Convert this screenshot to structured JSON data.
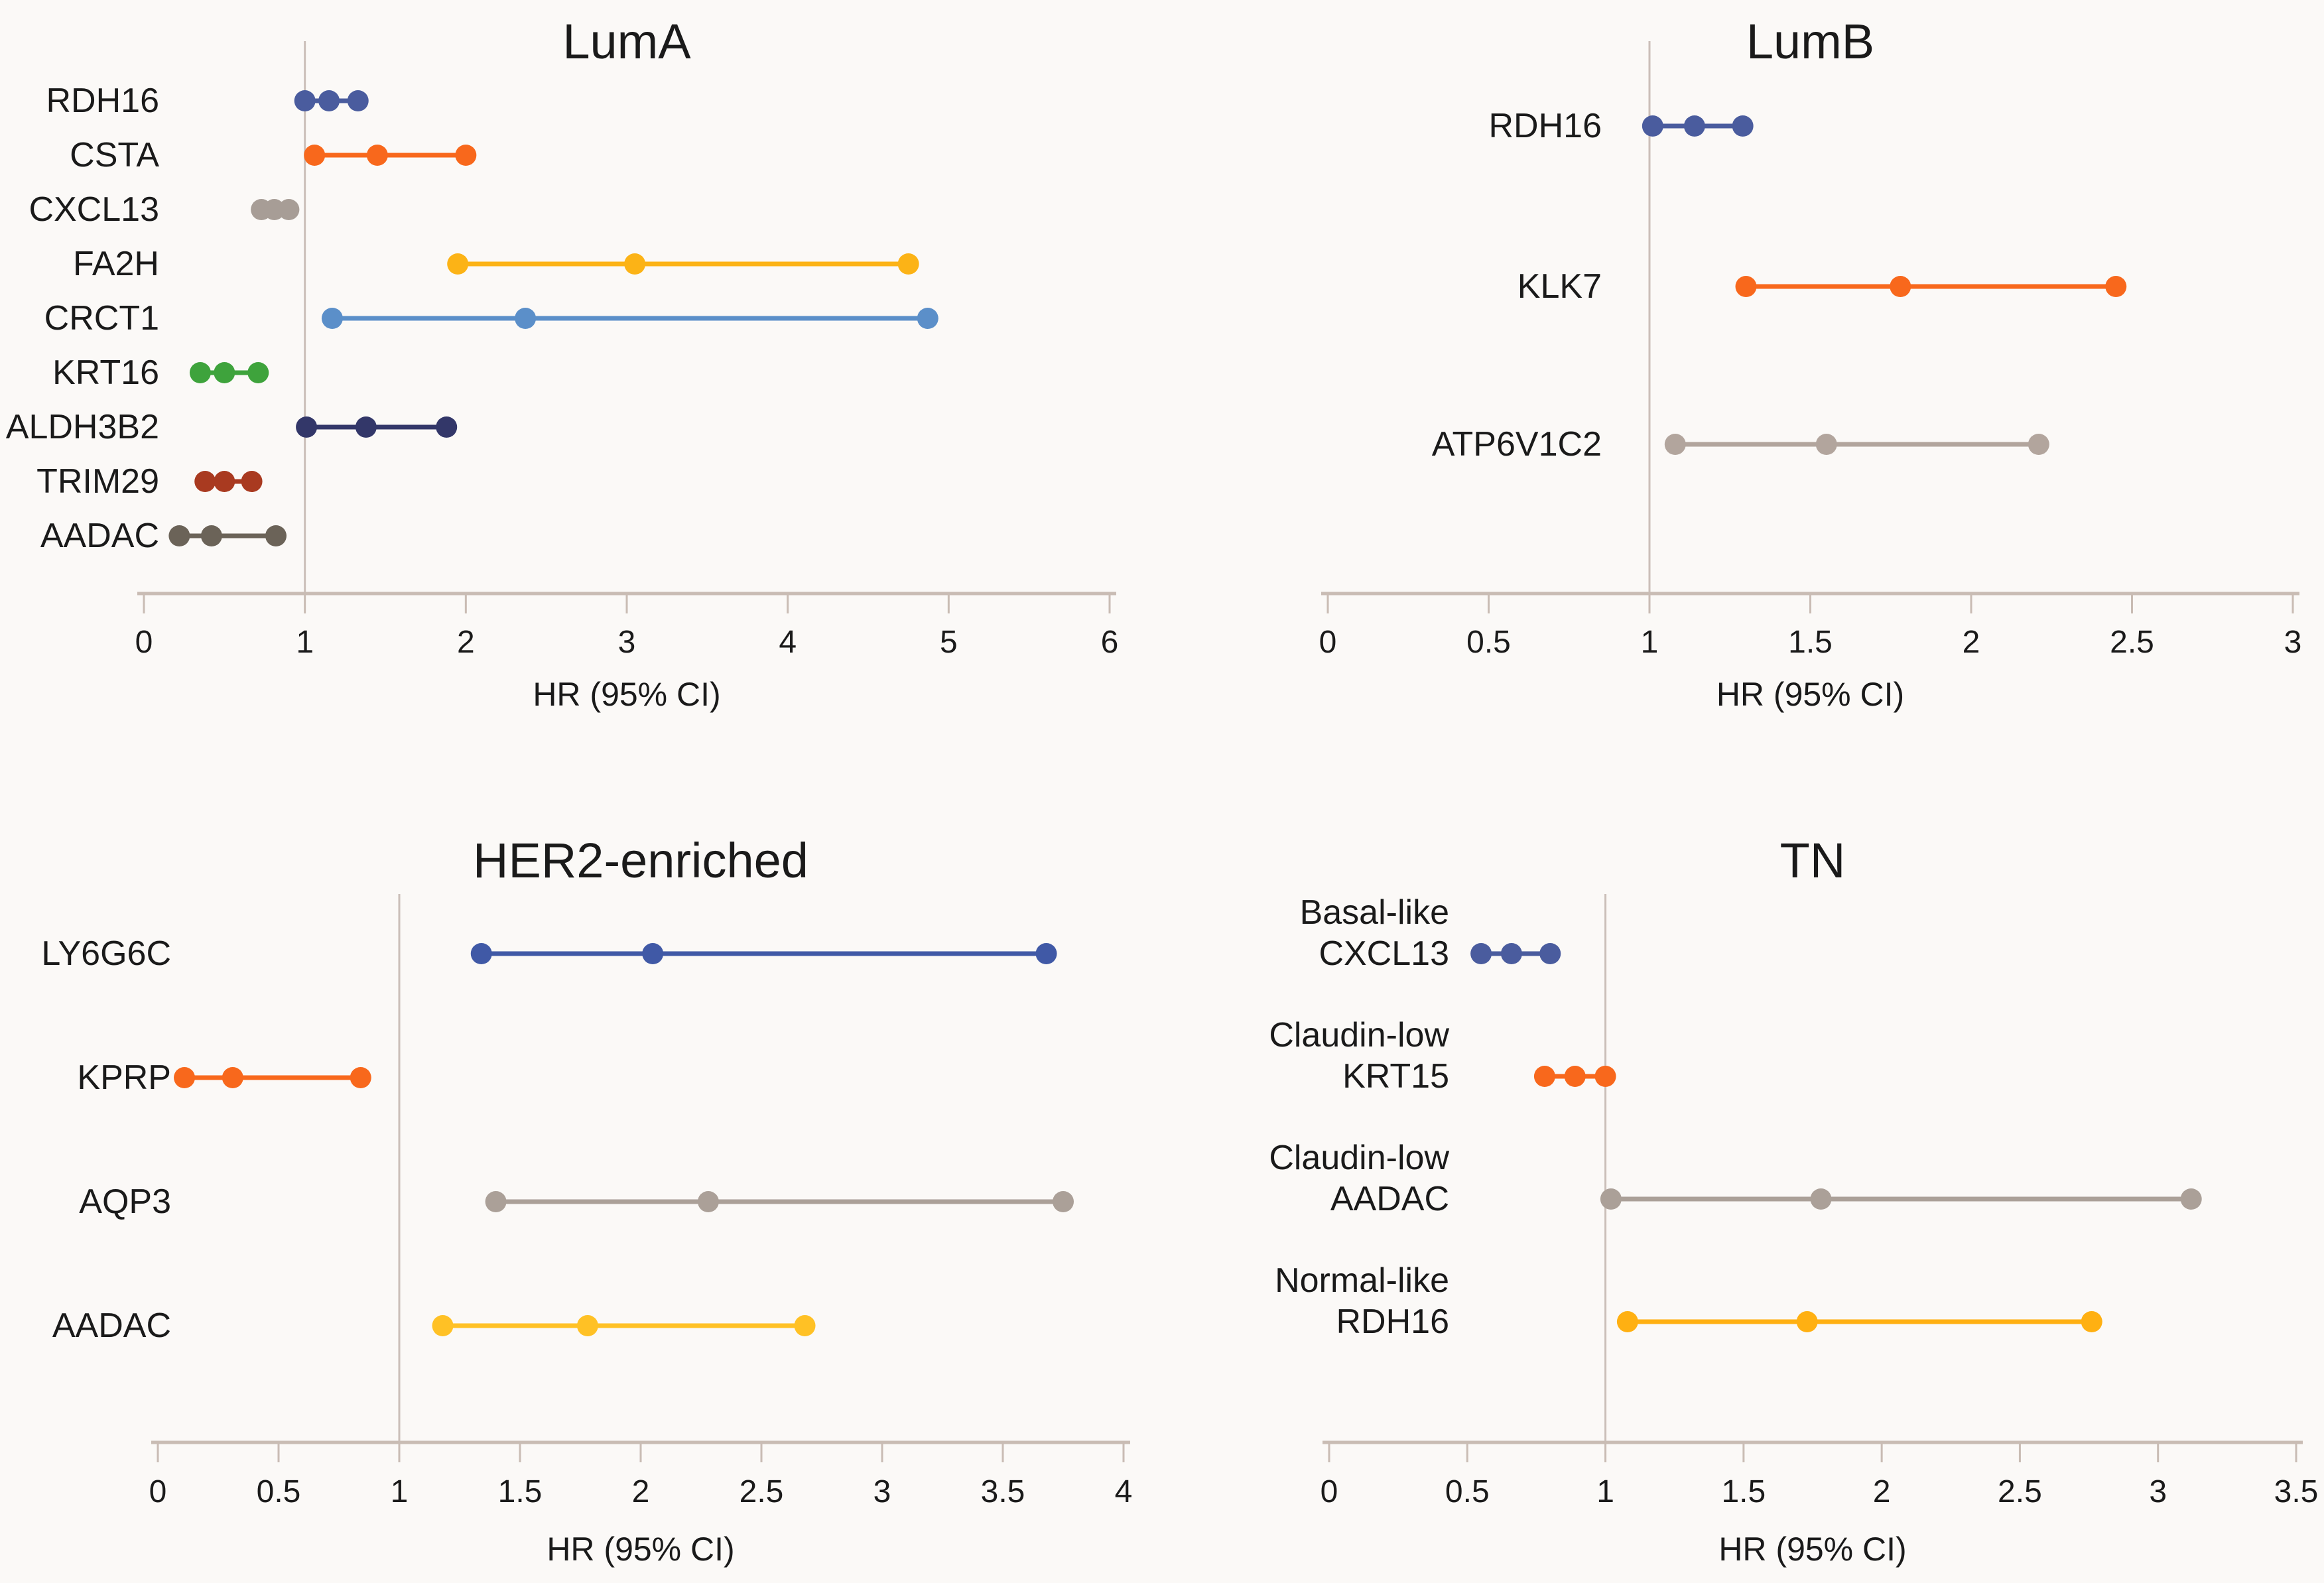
{
  "figure": {
    "background": "#FBF9F7",
    "text_color": "#1A1A1A",
    "axis_color": "#C9BCB4",
    "ref_line_color": "#CBBFB9"
  },
  "chart_data": [
    {
      "type": "scatter",
      "id": "luma",
      "title": "LumA",
      "xlabel": "HR (95% CI)",
      "xlim": [
        0,
        6
      ],
      "ref_line_x": 1,
      "grid": false,
      "xticks": [
        {
          "value": 0,
          "label": "0"
        },
        {
          "value": 1,
          "label": "1"
        },
        {
          "value": 2,
          "label": "2"
        },
        {
          "value": 3,
          "label": "3"
        },
        {
          "value": 4,
          "label": "4"
        },
        {
          "value": 5,
          "label": "5"
        },
        {
          "value": 6,
          "label": "6"
        }
      ],
      "rows": [
        {
          "gene": "RDH16",
          "label_lines": [
            "RDH16"
          ],
          "color": "#4A5C9E",
          "low": 1.0,
          "mid": 1.15,
          "high": 1.33
        },
        {
          "gene": "CSTA",
          "label_lines": [
            "CSTA"
          ],
          "color": "#F8681C",
          "low": 1.06,
          "mid": 1.45,
          "high": 2.0
        },
        {
          "gene": "CXCL13",
          "label_lines": [
            "CXCL13"
          ],
          "color": "#A79D96",
          "low": 0.73,
          "mid": 0.81,
          "high": 0.9
        },
        {
          "gene": "FA2H",
          "label_lines": [
            "FA2H"
          ],
          "color": "#FCB316",
          "low": 1.95,
          "mid": 3.05,
          "high": 4.75
        },
        {
          "gene": "CRCT1",
          "label_lines": [
            "CRCT1"
          ],
          "color": "#5B8FC9",
          "low": 1.17,
          "mid": 2.37,
          "high": 4.87
        },
        {
          "gene": "KRT16",
          "label_lines": [
            "KRT16"
          ],
          "color": "#3EA33C",
          "low": 0.35,
          "mid": 0.5,
          "high": 0.71
        },
        {
          "gene": "ALDH3B2",
          "label_lines": [
            "ALDH3B2"
          ],
          "color": "#333769",
          "low": 1.01,
          "mid": 1.38,
          "high": 1.88
        },
        {
          "gene": "TRIM29",
          "label_lines": [
            "TRIM29"
          ],
          "color": "#A93A20",
          "low": 0.38,
          "mid": 0.5,
          "high": 0.67
        },
        {
          "gene": "AADAC",
          "label_lines": [
            "AADAC"
          ],
          "color": "#6B6358",
          "low": 0.22,
          "mid": 0.42,
          "high": 0.82
        }
      ]
    },
    {
      "type": "scatter",
      "id": "lumb",
      "title": "LumB",
      "xlabel": "HR (95% CI)",
      "xlim": [
        0,
        3
      ],
      "ref_line_x": 1,
      "grid": false,
      "xticks": [
        {
          "value": 0,
          "label": "0"
        },
        {
          "value": 0.5,
          "label": "0.5"
        },
        {
          "value": 1,
          "label": "1"
        },
        {
          "value": 1.5,
          "label": "1.5"
        },
        {
          "value": 2,
          "label": "2"
        },
        {
          "value": 2.5,
          "label": "2.5"
        },
        {
          "value": 3,
          "label": "3"
        }
      ],
      "rows": [
        {
          "gene": "RDH16",
          "label_lines": [
            "RDH16"
          ],
          "color": "#4A5C9E",
          "low": 1.01,
          "mid": 1.14,
          "high": 1.29
        },
        {
          "gene": "KLK7",
          "label_lines": [
            "KLK7"
          ],
          "color": "#F8681C",
          "low": 1.3,
          "mid": 1.78,
          "high": 2.45
        },
        {
          "gene": "ATP6V1C2",
          "label_lines": [
            "ATP6V1C2"
          ],
          "color": "#B2A59D",
          "low": 1.08,
          "mid": 1.55,
          "high": 2.21
        }
      ]
    },
    {
      "type": "scatter",
      "id": "her2",
      "title": "HER2-enriched",
      "xlabel": "HR (95% CI)",
      "xlim": [
        0,
        4
      ],
      "ref_line_x": 1,
      "grid": false,
      "xticks": [
        {
          "value": 0,
          "label": "0"
        },
        {
          "value": 0.5,
          "label": "0.5"
        },
        {
          "value": 1,
          "label": "1"
        },
        {
          "value": 1.5,
          "label": "1.5"
        },
        {
          "value": 2,
          "label": "2"
        },
        {
          "value": 2.5,
          "label": "2.5"
        },
        {
          "value": 3,
          "label": "3"
        },
        {
          "value": 3.5,
          "label": "3.5"
        },
        {
          "value": 4,
          "label": "4"
        }
      ],
      "rows": [
        {
          "gene": "LY6G6C",
          "label_lines": [
            "LY6G6C"
          ],
          "color": "#4059A6",
          "low": 1.34,
          "mid": 2.05,
          "high": 3.68
        },
        {
          "gene": "KPRP",
          "label_lines": [
            "KPRP"
          ],
          "color": "#F8681C",
          "low": 0.11,
          "mid": 0.31,
          "high": 0.84
        },
        {
          "gene": "AQP3",
          "label_lines": [
            "AQP3"
          ],
          "color": "#ABA098",
          "low": 1.4,
          "mid": 2.28,
          "high": 3.75
        },
        {
          "gene": "AADAC",
          "label_lines": [
            "AADAC"
          ],
          "color": "#FFC125",
          "low": 1.18,
          "mid": 1.78,
          "high": 2.68
        }
      ]
    },
    {
      "type": "scatter",
      "id": "tn",
      "title": "TN",
      "xlabel": "HR (95% CI)",
      "xlim": [
        0,
        3.5
      ],
      "ref_line_x": 1,
      "grid": false,
      "xticks": [
        {
          "value": 0,
          "label": "0"
        },
        {
          "value": 0.5,
          "label": "0.5"
        },
        {
          "value": 1,
          "label": "1"
        },
        {
          "value": 1.5,
          "label": "1.5"
        },
        {
          "value": 2,
          "label": "2"
        },
        {
          "value": 2.5,
          "label": "2.5"
        },
        {
          "value": 3,
          "label": "3"
        },
        {
          "value": 3.5,
          "label": "3.5"
        }
      ],
      "rows": [
        {
          "gene": "CXCL13",
          "label_lines": [
            "Basal-like",
            "CXCL13"
          ],
          "color": "#4A5C9E",
          "low": 0.55,
          "mid": 0.66,
          "high": 0.8
        },
        {
          "gene": "KRT15",
          "label_lines": [
            "Claudin-low",
            "KRT15"
          ],
          "color": "#F8681C",
          "low": 0.78,
          "mid": 0.89,
          "high": 1.0
        },
        {
          "gene": "AADAC",
          "label_lines": [
            "Claudin-low",
            "AADAC"
          ],
          "color": "#ABA098",
          "low": 1.02,
          "mid": 1.78,
          "high": 3.12
        },
        {
          "gene": "RDH16",
          "label_lines": [
            "Normal-like",
            "RDH16"
          ],
          "color": "#FFB012",
          "low": 1.08,
          "mid": 1.73,
          "high": 2.76
        }
      ]
    }
  ]
}
